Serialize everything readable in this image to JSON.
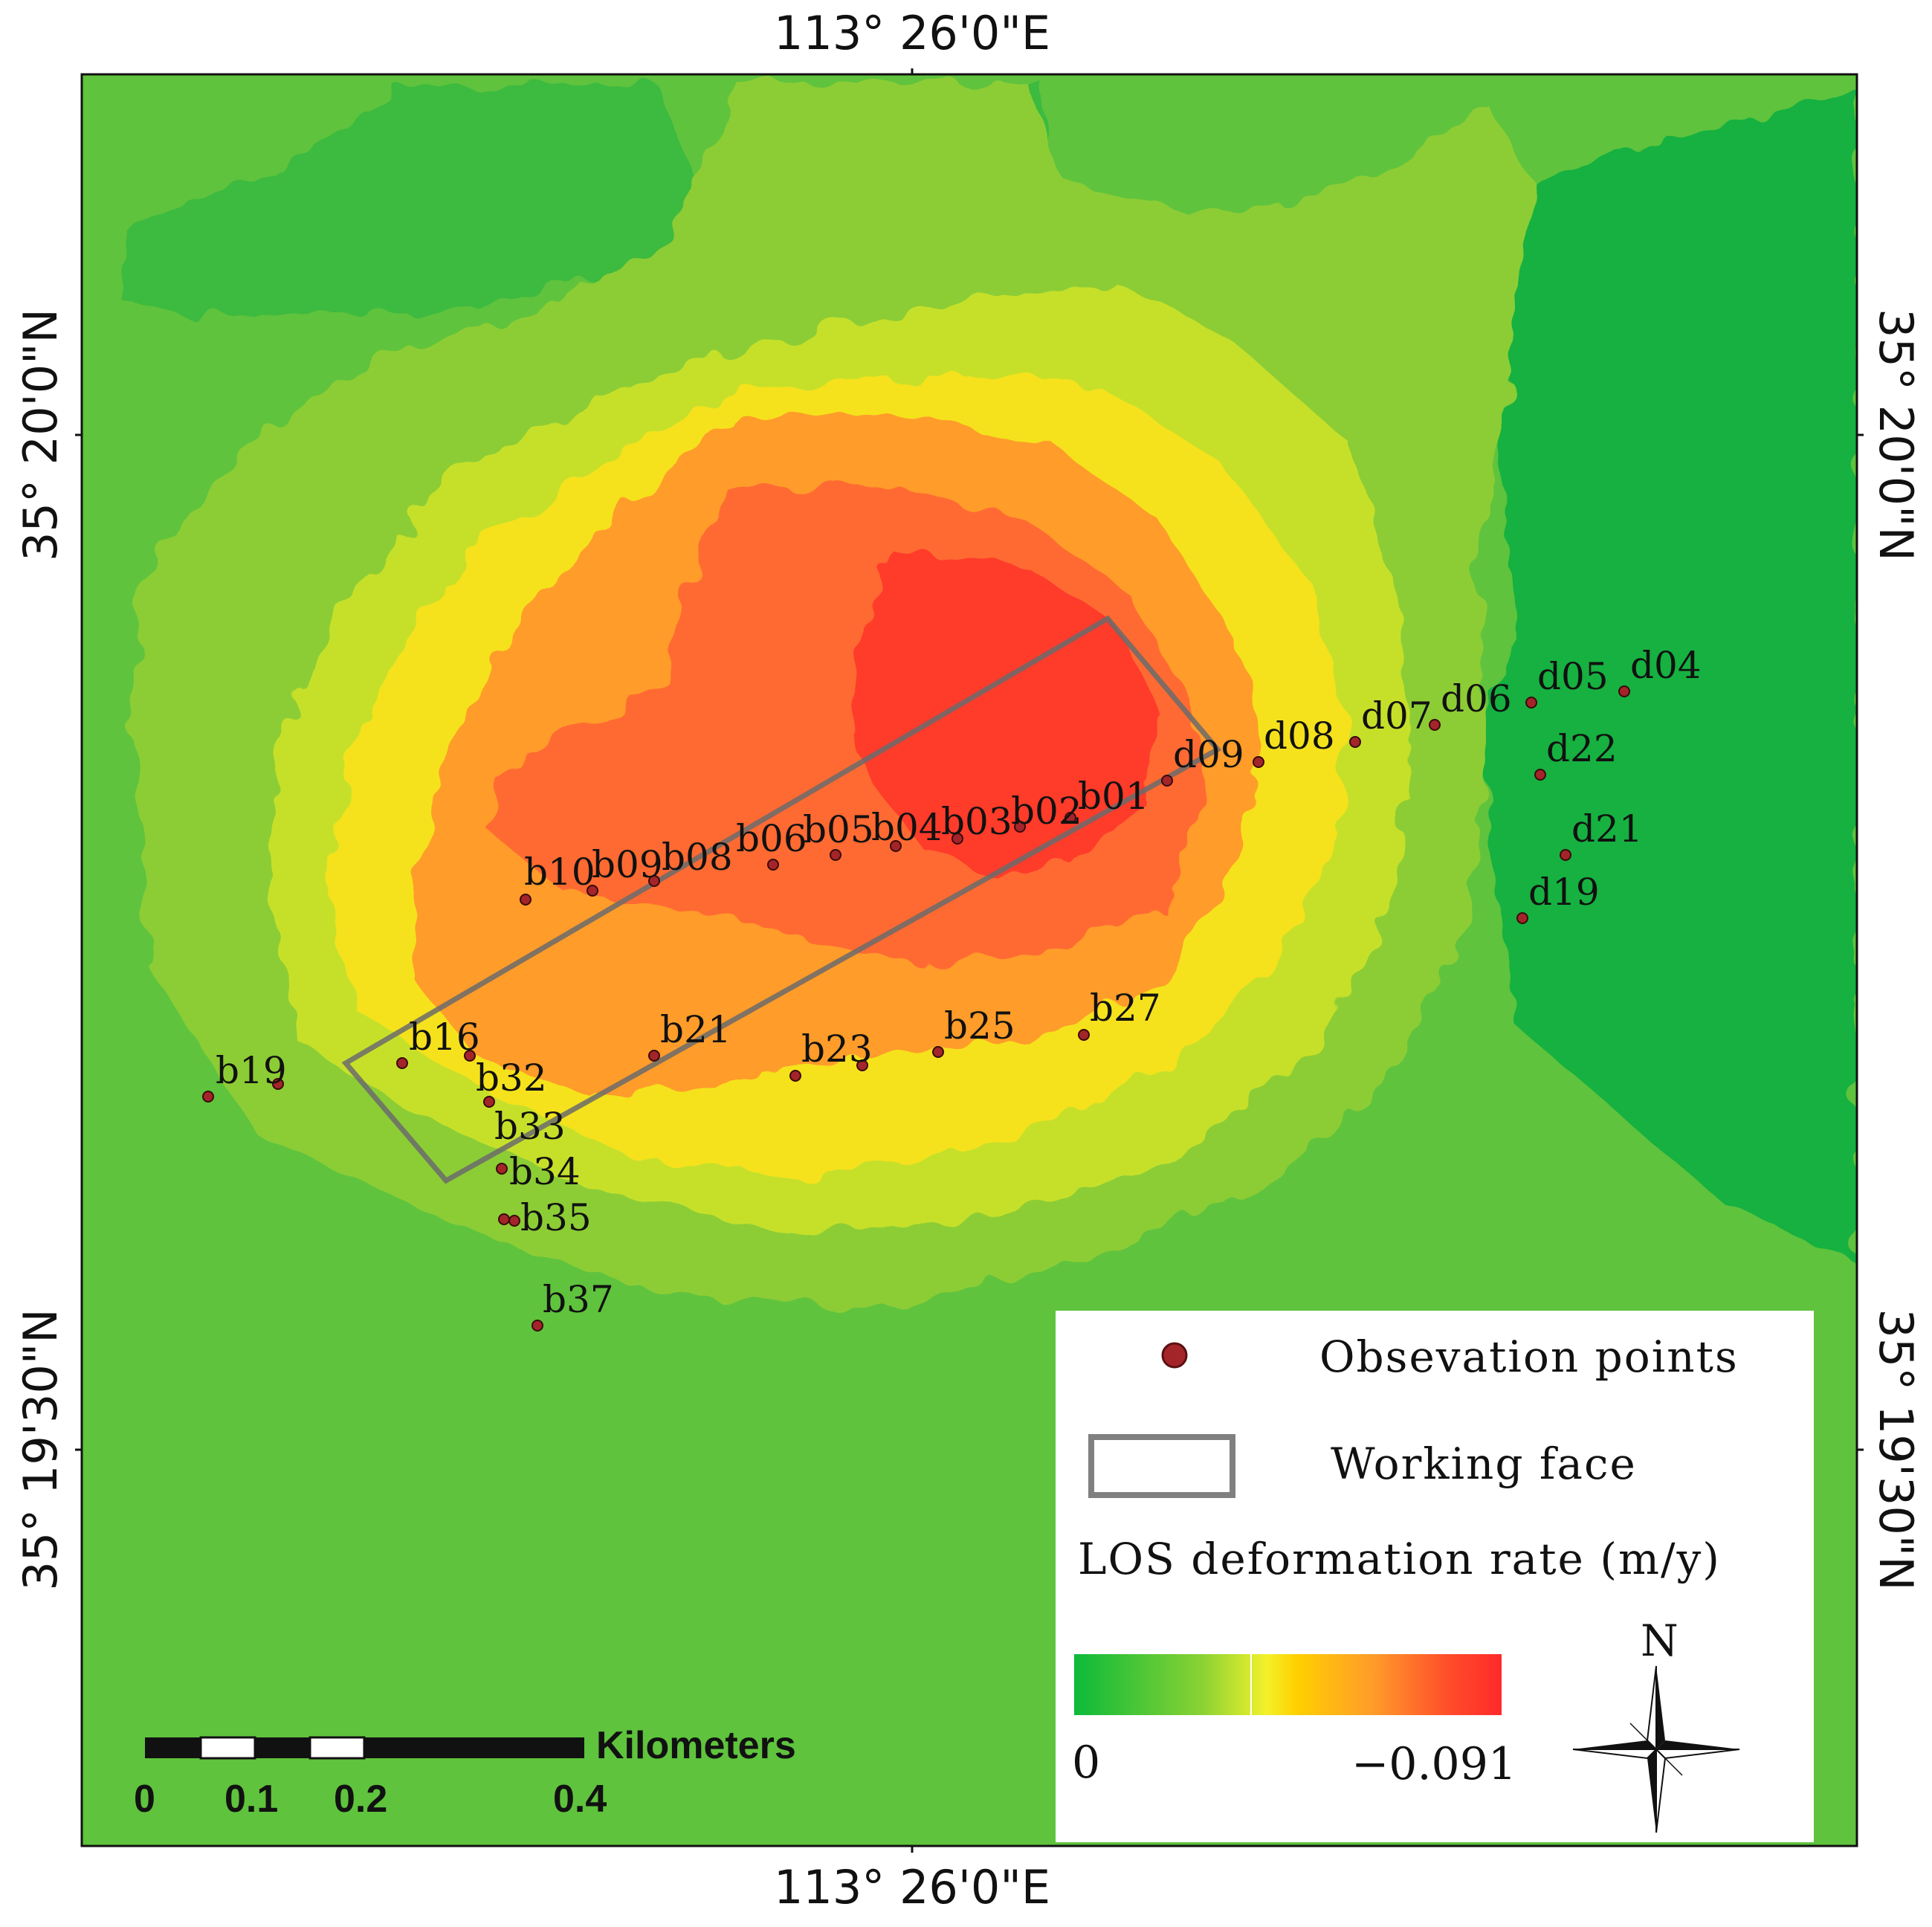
{
  "map": {
    "coords": {
      "top_lon": "113° 26'0\"E",
      "bottom_lon": "113° 26'0\"E",
      "left_lat_upper": "35° 20'0\"N",
      "left_lat_lower": "35° 19'30\"N",
      "right_lat_upper": "35° 20'0\"N",
      "right_lat_lower": "35° 19'30\"N"
    },
    "observation_points": [
      {
        "id": "b01",
        "label": "b01"
      },
      {
        "id": "b02",
        "label": "b02"
      },
      {
        "id": "b03",
        "label": "b03"
      },
      {
        "id": "b04",
        "label": "b04"
      },
      {
        "id": "b05",
        "label": "b05"
      },
      {
        "id": "b06",
        "label": "b06"
      },
      {
        "id": "b08",
        "label": "b08"
      },
      {
        "id": "b09",
        "label": "b09"
      },
      {
        "id": "b10",
        "label": "b10"
      },
      {
        "id": "b16",
        "label": "b16"
      },
      {
        "id": "b19",
        "label": "b19"
      },
      {
        "id": "b21",
        "label": "b21"
      },
      {
        "id": "b23",
        "label": "b23"
      },
      {
        "id": "b25",
        "label": "b25"
      },
      {
        "id": "b27",
        "label": "b27"
      },
      {
        "id": "b32",
        "label": "b32"
      },
      {
        "id": "b33",
        "label": "b33"
      },
      {
        "id": "b34",
        "label": "b34"
      },
      {
        "id": "b35",
        "label": "b35"
      },
      {
        "id": "b37",
        "label": "b37"
      },
      {
        "id": "d04",
        "label": "d04"
      },
      {
        "id": "d05",
        "label": "d05"
      },
      {
        "id": "d06",
        "label": "d06"
      },
      {
        "id": "d07",
        "label": "d07"
      },
      {
        "id": "d08",
        "label": "d08"
      },
      {
        "id": "d09",
        "label": "d09"
      },
      {
        "id": "d19",
        "label": "d19"
      },
      {
        "id": "d21",
        "label": "d21"
      },
      {
        "id": "d22",
        "label": "d22"
      }
    ],
    "colors": {
      "background_green": "#5fc33d",
      "dark_green": "#12b13f",
      "light_green": "#8ccd34",
      "yellow_green": "#c6e02a",
      "yellow": "#f5e21d",
      "orange": "#ff9c2a",
      "orange_red": "#ff6a30",
      "red": "#ff3a2c",
      "point_fill": "#a3252a",
      "working_face_stroke": "#6b6b6b"
    }
  },
  "legend": {
    "observation_label": "Obsevation points",
    "working_face_label": "Working face",
    "ramp_title": "LOS deformation rate (m/y)",
    "ramp_min": "0",
    "ramp_max": "−0.091",
    "north_label": "N"
  },
  "scale_bar": {
    "unit_label": "Kilometers",
    "ticks": [
      "0",
      "0.1",
      "0.2",
      "0.4"
    ]
  }
}
